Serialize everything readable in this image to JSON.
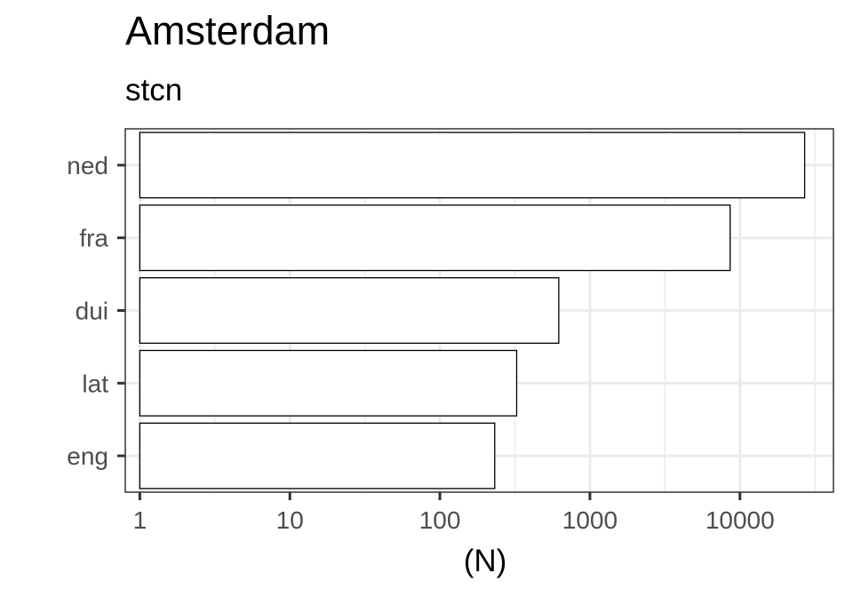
{
  "chart_data": {
    "type": "bar",
    "orientation": "horizontal",
    "title": "Amsterdam",
    "subtitle": "stcn",
    "xlabel": "(N)",
    "ylabel": "",
    "x_scale": "log10",
    "xlim": [
      0.8,
      42000
    ],
    "x_ticks": [
      1,
      10,
      100,
      1000,
      10000
    ],
    "x_tick_labels": [
      "1",
      "10",
      "100",
      "1000",
      "10000"
    ],
    "categories": [
      "ned",
      "fra",
      "dui",
      "lat",
      "eng"
    ],
    "values": [
      27000,
      8600,
      620,
      325,
      232
    ],
    "bar_fill": "#ffffff",
    "bar_stroke": "#000000",
    "grid": true,
    "panel_border": "#333333",
    "grid_color": "#ebebeb"
  }
}
